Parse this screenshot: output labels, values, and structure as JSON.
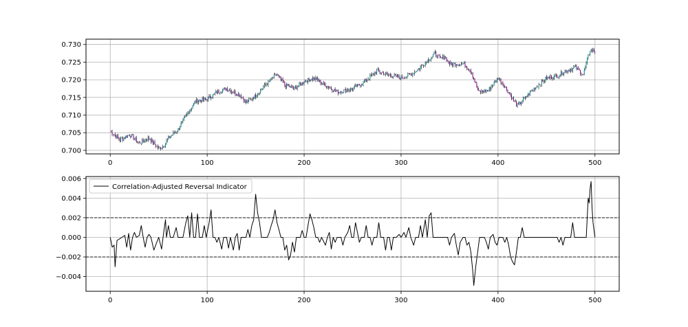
{
  "chart_data": [
    {
      "type": "candlestick",
      "title": "",
      "xlabel": "",
      "ylabel": "",
      "xlim": [
        -25,
        525
      ],
      "ylim": [
        0.699,
        0.7315
      ],
      "grid": true,
      "x_ticks": [
        0,
        100,
        200,
        300,
        400,
        500
      ],
      "x_tick_labels": [
        "0",
        "100",
        "200",
        "300",
        "400",
        "500"
      ],
      "y_ticks": [
        0.7,
        0.705,
        0.71,
        0.715,
        0.72,
        0.725,
        0.73
      ],
      "y_tick_labels": [
        "0.700",
        "0.705",
        "0.710",
        "0.715",
        "0.720",
        "0.725",
        "0.730"
      ],
      "colors": {
        "up": "#008b8b",
        "down": "#8b008b",
        "wick": "#000000"
      },
      "close_anchors": {
        "x": [
          0,
          10,
          20,
          30,
          40,
          50,
          56,
          60,
          70,
          80,
          88,
          100,
          110,
          120,
          135,
          140,
          150,
          160,
          172,
          180,
          190,
          200,
          210,
          225,
          235,
          250,
          260,
          275,
          285,
          300,
          310,
          320,
          335,
          340,
          345,
          350,
          365,
          372,
          380,
          390,
          400,
          405,
          420,
          435,
          450,
          460,
          470,
          480,
          488,
          495,
          500
        ],
        "y": [
          0.7055,
          0.703,
          0.7045,
          0.702,
          0.7035,
          0.7005,
          0.7015,
          0.7035,
          0.706,
          0.7105,
          0.714,
          0.7145,
          0.7165,
          0.7175,
          0.7155,
          0.7135,
          0.7155,
          0.7185,
          0.7215,
          0.7185,
          0.7175,
          0.7195,
          0.7205,
          0.718,
          0.7165,
          0.7175,
          0.719,
          0.7225,
          0.7215,
          0.7205,
          0.7215,
          0.7235,
          0.7275,
          0.726,
          0.7265,
          0.7245,
          0.7245,
          0.7225,
          0.7165,
          0.717,
          0.7205,
          0.719,
          0.7125,
          0.717,
          0.7205,
          0.721,
          0.7225,
          0.7235,
          0.7215,
          0.7285,
          0.728
        ]
      }
    },
    {
      "type": "line",
      "title": "",
      "xlabel": "",
      "ylabel": "",
      "xlim": [
        -25,
        525
      ],
      "ylim": [
        -0.0055,
        0.0062
      ],
      "grid": true,
      "legend_position": "top-left",
      "x_ticks": [
        0,
        100,
        200,
        300,
        400,
        500
      ],
      "x_tick_labels": [
        "0",
        "100",
        "200",
        "300",
        "400",
        "500"
      ],
      "y_ticks": [
        -0.004,
        -0.002,
        0.0,
        0.002,
        0.004,
        0.006
      ],
      "y_tick_labels": [
        "−0.004",
        "−0.002",
        "0.000",
        "0.002",
        "0.004",
        "0.006"
      ],
      "thresholds": [
        0.002,
        -0.002
      ],
      "series": [
        {
          "name": "Correlation-Adjusted Reversal Indicator",
          "color": "#000000",
          "points": [
            [
              0,
              0.0
            ],
            [
              2,
              -0.001
            ],
            [
              4,
              -0.0008
            ],
            [
              5,
              -0.003
            ],
            [
              7,
              -0.0003
            ],
            [
              9,
              -0.0002
            ],
            [
              12,
              0.0
            ],
            [
              15,
              0.0002
            ],
            [
              17,
              -0.001
            ],
            [
              19,
              0.0004
            ],
            [
              21,
              -0.0013
            ],
            [
              23,
              0.0
            ],
            [
              25,
              0.0005
            ],
            [
              27,
              0.0
            ],
            [
              30,
              0.0002
            ],
            [
              32,
              0.0012
            ],
            [
              34,
              0.0
            ],
            [
              36,
              -0.001
            ],
            [
              38,
              0.0
            ],
            [
              40,
              0.0003
            ],
            [
              42,
              0.0
            ],
            [
              45,
              -0.0013
            ],
            [
              48,
              -0.0005
            ],
            [
              50,
              0.0
            ],
            [
              53,
              -0.0012
            ],
            [
              55,
              0.0004
            ],
            [
              57,
              0.0018
            ],
            [
              58,
              0.0
            ],
            [
              60,
              0.0012
            ],
            [
              62,
              0.0
            ],
            [
              65,
              0.0
            ],
            [
              68,
              0.001
            ],
            [
              70,
              0.0
            ],
            [
              75,
              0.0
            ],
            [
              78,
              0.0015
            ],
            [
              80,
              0.0022
            ],
            [
              82,
              0.0
            ],
            [
              84,
              0.0025
            ],
            [
              86,
              0.0
            ],
            [
              88,
              0.0
            ],
            [
              90,
              0.0024
            ],
            [
              92,
              0.0
            ],
            [
              95,
              0.0
            ],
            [
              97,
              0.0012
            ],
            [
              99,
              0.0
            ],
            [
              102,
              0.0015
            ],
            [
              104,
              0.0028
            ],
            [
              106,
              0.0
            ],
            [
              108,
              0.0
            ],
            [
              110,
              -0.0005
            ],
            [
              112,
              0.0
            ],
            [
              115,
              -0.0012
            ],
            [
              117,
              0.0
            ],
            [
              120,
              0.0
            ],
            [
              122,
              -0.0011
            ],
            [
              124,
              0.0
            ],
            [
              127,
              -0.0013
            ],
            [
              129,
              0.0
            ],
            [
              131,
              0.0004
            ],
            [
              133,
              -0.0013
            ],
            [
              135,
              0.0
            ],
            [
              138,
              0.0
            ],
            [
              140,
              0.0
            ],
            [
              142,
              0.0008
            ],
            [
              144,
              0.0
            ],
            [
              146,
              0.0012
            ],
            [
              148,
              0.0018
            ],
            [
              150,
              0.0044
            ],
            [
              152,
              0.0025
            ],
            [
              154,
              0.0015
            ],
            [
              156,
              0.0
            ],
            [
              158,
              0.0
            ],
            [
              162,
              0.0
            ],
            [
              164,
              0.0005
            ],
            [
              166,
              0.0012
            ],
            [
              168,
              0.0018
            ],
            [
              170,
              0.0028
            ],
            [
              172,
              0.0015
            ],
            [
              174,
              0.0008
            ],
            [
              176,
              0.0
            ],
            [
              178,
              0.0
            ],
            [
              180,
              -0.0013
            ],
            [
              182,
              -0.0008
            ],
            [
              184,
              -0.0023
            ],
            [
              186,
              -0.0018
            ],
            [
              188,
              -0.0005
            ],
            [
              190,
              -0.0015
            ],
            [
              192,
              0.0
            ],
            [
              194,
              0.0
            ],
            [
              196,
              0.0
            ],
            [
              198,
              0.0007
            ],
            [
              200,
              0.0
            ],
            [
              202,
              0.0
            ],
            [
              204,
              0.0012
            ],
            [
              206,
              0.0024
            ],
            [
              208,
              0.0018
            ],
            [
              210,
              0.001
            ],
            [
              212,
              0.0
            ],
            [
              214,
              0.0
            ],
            [
              216,
              -0.0005
            ],
            [
              218,
              0.0
            ],
            [
              222,
              -0.0008
            ],
            [
              224,
              0.0
            ],
            [
              226,
              0.0005
            ],
            [
              228,
              -0.0012
            ],
            [
              230,
              0.0
            ],
            [
              232,
              -0.0005
            ],
            [
              234,
              0.0
            ],
            [
              238,
              0.0
            ],
            [
              240,
              -0.0008
            ],
            [
              242,
              0.0
            ],
            [
              245,
              0.0005
            ],
            [
              247,
              0.0012
            ],
            [
              249,
              0.0
            ],
            [
              251,
              0.0
            ],
            [
              253,
              0.0015
            ],
            [
              255,
              0.0005
            ],
            [
              257,
              -0.0005
            ],
            [
              259,
              0.0
            ],
            [
              262,
              0.0
            ],
            [
              264,
              0.0012
            ],
            [
              266,
              0.0
            ],
            [
              268,
              0.0
            ],
            [
              270,
              -0.0008
            ],
            [
              272,
              0.0
            ],
            [
              275,
              0.0
            ],
            [
              277,
              0.0015
            ],
            [
              279,
              0.0
            ],
            [
              282,
              0.0
            ],
            [
              284,
              -0.0013
            ],
            [
              286,
              0.0
            ],
            [
              288,
              0.0
            ],
            [
              290,
              -0.0013
            ],
            [
              292,
              0.0
            ],
            [
              295,
              0.0
            ],
            [
              298,
              0.0003
            ],
            [
              300,
              0.0
            ],
            [
              303,
              0.0005
            ],
            [
              305,
              0.0
            ],
            [
              308,
              0.001
            ],
            [
              310,
              0.0
            ],
            [
              313,
              -0.0008
            ],
            [
              315,
              0.0
            ],
            [
              318,
              0.0
            ],
            [
              320,
              0.0012
            ],
            [
              322,
              0.0
            ],
            [
              325,
              0.0018
            ],
            [
              327,
              0.0
            ],
            [
              329,
              0.0022
            ],
            [
              331,
              0.0025
            ],
            [
              333,
              0.0
            ],
            [
              335,
              0.0
            ],
            [
              337,
              0.0
            ],
            [
              340,
              0.0
            ],
            [
              345,
              0.0
            ],
            [
              348,
              0.0
            ],
            [
              350,
              -0.0008
            ],
            [
              352,
              0.0
            ],
            [
              355,
              0.0004
            ],
            [
              357,
              -0.0008
            ],
            [
              359,
              -0.0018
            ],
            [
              361,
              -0.0005
            ],
            [
              364,
              0.0
            ],
            [
              366,
              0.0
            ],
            [
              368,
              -0.0008
            ],
            [
              370,
              -0.0005
            ],
            [
              372,
              -0.0015
            ],
            [
              374,
              -0.0035
            ],
            [
              375,
              -0.0049
            ],
            [
              377,
              -0.003
            ],
            [
              379,
              -0.0015
            ],
            [
              381,
              0.0
            ],
            [
              383,
              0.0
            ],
            [
              386,
              0.0
            ],
            [
              388,
              -0.0005
            ],
            [
              390,
              -0.0012
            ],
            [
              392,
              0.0
            ],
            [
              395,
              0.0003
            ],
            [
              397,
              -0.0005
            ],
            [
              399,
              -0.0008
            ],
            [
              401,
              0.0
            ],
            [
              403,
              0.0
            ],
            [
              405,
              0.0
            ],
            [
              407,
              -0.0005
            ],
            [
              409,
              0.0
            ],
            [
              411,
              -0.0008
            ],
            [
              413,
              -0.002
            ],
            [
              415,
              -0.0025
            ],
            [
              417,
              -0.0028
            ],
            [
              419,
              -0.0015
            ],
            [
              421,
              0.0
            ],
            [
              423,
              0.0
            ],
            [
              425,
              0.001
            ],
            [
              427,
              0.0
            ],
            [
              429,
              0.0
            ],
            [
              431,
              0.0
            ],
            [
              433,
              0.0
            ],
            [
              435,
              0.0
            ],
            [
              437,
              0.0
            ],
            [
              439,
              0.0
            ],
            [
              441,
              0.0
            ],
            [
              443,
              0.0
            ],
            [
              445,
              0.0
            ],
            [
              447,
              0.0
            ],
            [
              449,
              0.0
            ],
            [
              451,
              0.0
            ],
            [
              453,
              0.0
            ],
            [
              455,
              0.0
            ],
            [
              457,
              0.0
            ],
            [
              459,
              0.0
            ],
            [
              461,
              0.0
            ],
            [
              463,
              -0.0005
            ],
            [
              465,
              0.0
            ],
            [
              467,
              -0.0008
            ],
            [
              469,
              0.0
            ],
            [
              471,
              0.0
            ],
            [
              473,
              0.0
            ],
            [
              475,
              0.0
            ],
            [
              477,
              0.0015
            ],
            [
              479,
              0.0
            ],
            [
              481,
              0.0
            ],
            [
              483,
              0.0
            ],
            [
              485,
              0.0
            ],
            [
              487,
              0.0
            ],
            [
              489,
              0.0
            ],
            [
              491,
              0.0
            ],
            [
              493,
              0.004
            ],
            [
              494,
              0.0035
            ],
            [
              495,
              0.005
            ],
            [
              496,
              0.0057
            ],
            [
              497,
              0.003
            ],
            [
              498,
              0.0015
            ],
            [
              500,
              0.0
            ]
          ]
        }
      ]
    }
  ]
}
